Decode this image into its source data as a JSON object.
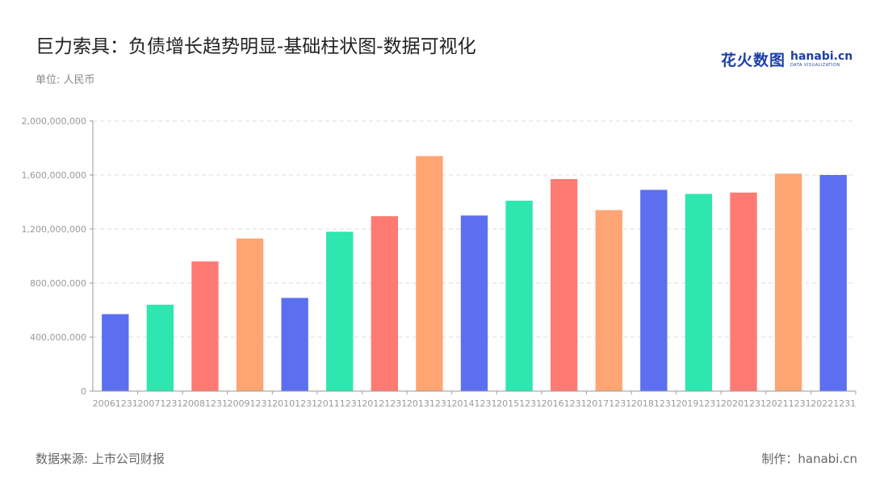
{
  "header": {
    "title": "巨力索具：负债增长趋势明显-基础柱状图-数据可视化",
    "unit": "单位: 人民币"
  },
  "logo": {
    "cn": "花火数图",
    "en": "hanabi.cn",
    "sub": "DATA VISUALIZATION"
  },
  "footer": {
    "source": "数据来源: 上市公司财报",
    "maker": "制作：hanabi.cn"
  },
  "colors": {
    "palette": [
      "#5b6ff0",
      "#2ee6b0",
      "#ff7a72",
      "#ffa473"
    ],
    "grid": "#dddddd",
    "axis": "#9a9a9a"
  },
  "chart_data": {
    "type": "bar",
    "title": "巨力索具：负债增长趋势明显-基础柱状图-数据可视化",
    "xlabel": "",
    "ylabel": "",
    "ylim": [
      0,
      2000000000
    ],
    "yticks": [
      0,
      400000000,
      800000000,
      1200000000,
      1600000000,
      2000000000
    ],
    "ytick_labels": [
      "0",
      "400,000,000",
      "800,000,000",
      "1,200,000,000",
      "1,600,000,000",
      "2,000,000,000"
    ],
    "grid": true,
    "categories": [
      "20061231",
      "20071231",
      "20081231",
      "20091231",
      "20101231",
      "20111231",
      "20121231",
      "20131231",
      "20141231",
      "20151231",
      "20161231",
      "20171231",
      "20181231",
      "20191231",
      "20201231",
      "20211231",
      "20221231"
    ],
    "values": [
      570000000,
      640000000,
      960000000,
      1130000000,
      690000000,
      1180000000,
      1295000000,
      1740000000,
      1300000000,
      1410000000,
      1570000000,
      1340000000,
      1490000000,
      1460000000,
      1470000000,
      1610000000,
      1600000000
    ]
  }
}
